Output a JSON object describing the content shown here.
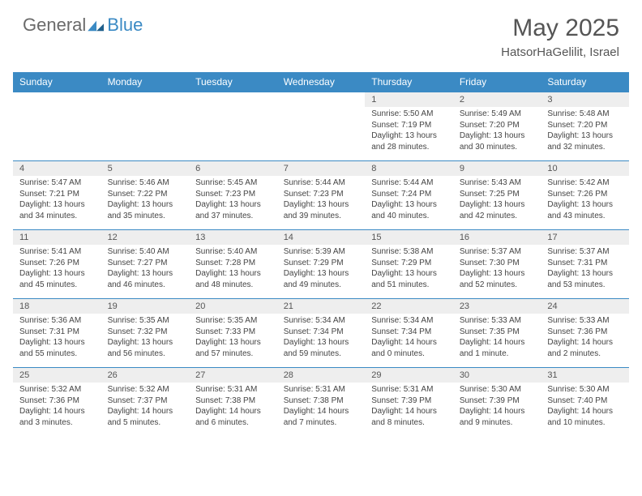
{
  "logo": {
    "text1": "General",
    "text2": "Blue"
  },
  "title": "May 2025",
  "location": "HatsorHaGelilit, Israel",
  "colors": {
    "accent": "#3b8ac4",
    "header_text": "#ffffff",
    "date_row_bg": "#eeeeee",
    "body_text": "#444444",
    "title_text": "#555555"
  },
  "day_names": [
    "Sunday",
    "Monday",
    "Tuesday",
    "Wednesday",
    "Thursday",
    "Friday",
    "Saturday"
  ],
  "weeks": [
    {
      "dates": [
        "",
        "",
        "",
        "",
        "1",
        "2",
        "3"
      ],
      "info": [
        "",
        "",
        "",
        "",
        "Sunrise: 5:50 AM\nSunset: 7:19 PM\nDaylight: 13 hours and 28 minutes.",
        "Sunrise: 5:49 AM\nSunset: 7:20 PM\nDaylight: 13 hours and 30 minutes.",
        "Sunrise: 5:48 AM\nSunset: 7:20 PM\nDaylight: 13 hours and 32 minutes."
      ]
    },
    {
      "dates": [
        "4",
        "5",
        "6",
        "7",
        "8",
        "9",
        "10"
      ],
      "info": [
        "Sunrise: 5:47 AM\nSunset: 7:21 PM\nDaylight: 13 hours and 34 minutes.",
        "Sunrise: 5:46 AM\nSunset: 7:22 PM\nDaylight: 13 hours and 35 minutes.",
        "Sunrise: 5:45 AM\nSunset: 7:23 PM\nDaylight: 13 hours and 37 minutes.",
        "Sunrise: 5:44 AM\nSunset: 7:23 PM\nDaylight: 13 hours and 39 minutes.",
        "Sunrise: 5:44 AM\nSunset: 7:24 PM\nDaylight: 13 hours and 40 minutes.",
        "Sunrise: 5:43 AM\nSunset: 7:25 PM\nDaylight: 13 hours and 42 minutes.",
        "Sunrise: 5:42 AM\nSunset: 7:26 PM\nDaylight: 13 hours and 43 minutes."
      ]
    },
    {
      "dates": [
        "11",
        "12",
        "13",
        "14",
        "15",
        "16",
        "17"
      ],
      "info": [
        "Sunrise: 5:41 AM\nSunset: 7:26 PM\nDaylight: 13 hours and 45 minutes.",
        "Sunrise: 5:40 AM\nSunset: 7:27 PM\nDaylight: 13 hours and 46 minutes.",
        "Sunrise: 5:40 AM\nSunset: 7:28 PM\nDaylight: 13 hours and 48 minutes.",
        "Sunrise: 5:39 AM\nSunset: 7:29 PM\nDaylight: 13 hours and 49 minutes.",
        "Sunrise: 5:38 AM\nSunset: 7:29 PM\nDaylight: 13 hours and 51 minutes.",
        "Sunrise: 5:37 AM\nSunset: 7:30 PM\nDaylight: 13 hours and 52 minutes.",
        "Sunrise: 5:37 AM\nSunset: 7:31 PM\nDaylight: 13 hours and 53 minutes."
      ]
    },
    {
      "dates": [
        "18",
        "19",
        "20",
        "21",
        "22",
        "23",
        "24"
      ],
      "info": [
        "Sunrise: 5:36 AM\nSunset: 7:31 PM\nDaylight: 13 hours and 55 minutes.",
        "Sunrise: 5:35 AM\nSunset: 7:32 PM\nDaylight: 13 hours and 56 minutes.",
        "Sunrise: 5:35 AM\nSunset: 7:33 PM\nDaylight: 13 hours and 57 minutes.",
        "Sunrise: 5:34 AM\nSunset: 7:34 PM\nDaylight: 13 hours and 59 minutes.",
        "Sunrise: 5:34 AM\nSunset: 7:34 PM\nDaylight: 14 hours and 0 minutes.",
        "Sunrise: 5:33 AM\nSunset: 7:35 PM\nDaylight: 14 hours and 1 minute.",
        "Sunrise: 5:33 AM\nSunset: 7:36 PM\nDaylight: 14 hours and 2 minutes."
      ]
    },
    {
      "dates": [
        "25",
        "26",
        "27",
        "28",
        "29",
        "30",
        "31"
      ],
      "info": [
        "Sunrise: 5:32 AM\nSunset: 7:36 PM\nDaylight: 14 hours and 3 minutes.",
        "Sunrise: 5:32 AM\nSunset: 7:37 PM\nDaylight: 14 hours and 5 minutes.",
        "Sunrise: 5:31 AM\nSunset: 7:38 PM\nDaylight: 14 hours and 6 minutes.",
        "Sunrise: 5:31 AM\nSunset: 7:38 PM\nDaylight: 14 hours and 7 minutes.",
        "Sunrise: 5:31 AM\nSunset: 7:39 PM\nDaylight: 14 hours and 8 minutes.",
        "Sunrise: 5:30 AM\nSunset: 7:39 PM\nDaylight: 14 hours and 9 minutes.",
        "Sunrise: 5:30 AM\nSunset: 7:40 PM\nDaylight: 14 hours and 10 minutes."
      ]
    }
  ]
}
